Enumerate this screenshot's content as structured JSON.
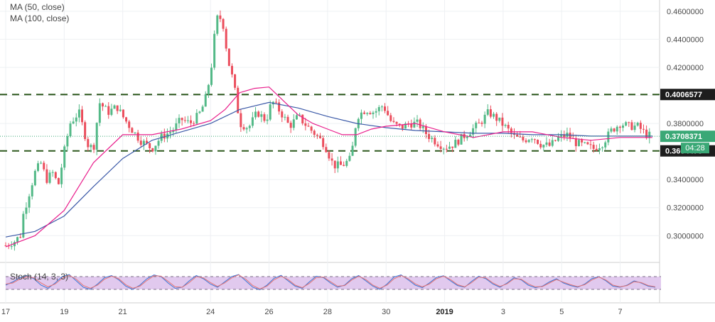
{
  "chart_data": [
    {
      "type": "candlestick",
      "indicators": [
        {
          "name": "MA (50, close)",
          "color": "#e91e8c"
        },
        {
          "name": "MA (100, close)",
          "color": "#3c5aa8"
        }
      ],
      "ylim": [
        0.288,
        0.466
      ],
      "y_ticks": [
        "0.4600000",
        "0.4400000",
        "0.4200000",
        "0.4000000",
        "0.3800000",
        "0.3400000",
        "0.3200000",
        "0.3000000"
      ],
      "x_ticks": [
        "17",
        "19",
        "21",
        "24",
        "26",
        "28",
        "30",
        "2019",
        "3",
        "5",
        "7"
      ],
      "x_tick_pos": [
        0,
        2,
        4,
        7,
        9,
        11,
        13,
        15,
        17,
        19,
        21
      ],
      "x_range": [
        0,
        22.2
      ],
      "levels": [
        {
          "value": 0.4006577,
          "label": "0.4006577",
          "style": "dashed",
          "color": "#2f5a1f"
        },
        {
          "value": 0.3604473,
          "label": "0.3604473",
          "style": "dashed",
          "color": "#2f5a1f"
        }
      ],
      "last_price": {
        "value": 0.3708371,
        "label": "0.3708371",
        "countdown": "04:28",
        "color": "#3aa876"
      },
      "price_path": [
        [
          0.0,
          0.293
        ],
        [
          0.3,
          0.296
        ],
        [
          0.5,
          0.3
        ],
        [
          0.6,
          0.315
        ],
        [
          0.8,
          0.33
        ],
        [
          1.0,
          0.345
        ],
        [
          1.2,
          0.352
        ],
        [
          1.4,
          0.34
        ],
        [
          1.6,
          0.345
        ],
        [
          1.8,
          0.336
        ],
        [
          2.0,
          0.36
        ],
        [
          2.2,
          0.38
        ],
        [
          2.5,
          0.388
        ],
        [
          2.8,
          0.365
        ],
        [
          3.0,
          0.362
        ],
        [
          3.2,
          0.395
        ],
        [
          3.5,
          0.388
        ],
        [
          3.8,
          0.392
        ],
        [
          4.0,
          0.385
        ],
        [
          4.3,
          0.376
        ],
        [
          4.6,
          0.368
        ],
        [
          5.0,
          0.362
        ],
        [
          5.3,
          0.37
        ],
        [
          5.7,
          0.375
        ],
        [
          6.0,
          0.383
        ],
        [
          6.3,
          0.38
        ],
        [
          6.6,
          0.386
        ],
        [
          6.8,
          0.395
        ],
        [
          7.0,
          0.415
        ],
        [
          7.2,
          0.455
        ],
        [
          7.4,
          0.455
        ],
        [
          7.6,
          0.425
        ],
        [
          7.8,
          0.408
        ],
        [
          8.0,
          0.38
        ],
        [
          8.3,
          0.377
        ],
        [
          8.6,
          0.388
        ],
        [
          8.9,
          0.382
        ],
        [
          9.1,
          0.396
        ],
        [
          9.4,
          0.388
        ],
        [
          9.7,
          0.378
        ],
        [
          10.0,
          0.385
        ],
        [
          10.3,
          0.378
        ],
        [
          10.6,
          0.372
        ],
        [
          10.9,
          0.365
        ],
        [
          11.2,
          0.35
        ],
        [
          11.5,
          0.35
        ],
        [
          11.8,
          0.355
        ],
        [
          12.0,
          0.385
        ],
        [
          12.3,
          0.39
        ],
        [
          12.6,
          0.388
        ],
        [
          12.9,
          0.393
        ],
        [
          13.2,
          0.38
        ],
        [
          13.5,
          0.377
        ],
        [
          13.8,
          0.38
        ],
        [
          14.1,
          0.38
        ],
        [
          14.4,
          0.372
        ],
        [
          14.7,
          0.367
        ],
        [
          15.0,
          0.363
        ],
        [
          15.3,
          0.365
        ],
        [
          15.6,
          0.37
        ],
        [
          15.9,
          0.375
        ],
        [
          16.2,
          0.38
        ],
        [
          16.5,
          0.388
        ],
        [
          16.8,
          0.383
        ],
        [
          17.1,
          0.377
        ],
        [
          17.4,
          0.37
        ],
        [
          17.7,
          0.368
        ],
        [
          18.0,
          0.371
        ],
        [
          18.3,
          0.365
        ],
        [
          18.6,
          0.364
        ],
        [
          18.9,
          0.37
        ],
        [
          19.2,
          0.372
        ],
        [
          19.5,
          0.366
        ],
        [
          19.8,
          0.364
        ],
        [
          20.1,
          0.362
        ],
        [
          20.4,
          0.366
        ],
        [
          20.7,
          0.375
        ],
        [
          21.0,
          0.38
        ],
        [
          21.3,
          0.378
        ],
        [
          21.6,
          0.378
        ],
        [
          21.9,
          0.372
        ],
        [
          22.1,
          0.371
        ]
      ],
      "ma50_path": [
        [
          0.0,
          0.292
        ],
        [
          1.0,
          0.3
        ],
        [
          2.0,
          0.318
        ],
        [
          3.0,
          0.352
        ],
        [
          4.0,
          0.372
        ],
        [
          5.0,
          0.372
        ],
        [
          6.0,
          0.376
        ],
        [
          7.0,
          0.382
        ],
        [
          7.5,
          0.39
        ],
        [
          8.0,
          0.402
        ],
        [
          8.5,
          0.405
        ],
        [
          9.0,
          0.406
        ],
        [
          9.5,
          0.396
        ],
        [
          10.0,
          0.386
        ],
        [
          10.5,
          0.38
        ],
        [
          11.0,
          0.376
        ],
        [
          11.5,
          0.372
        ],
        [
          12.0,
          0.372
        ],
        [
          12.5,
          0.376
        ],
        [
          13.0,
          0.378
        ],
        [
          14.0,
          0.38
        ],
        [
          15.0,
          0.374
        ],
        [
          16.0,
          0.37
        ],
        [
          17.0,
          0.374
        ],
        [
          18.0,
          0.374
        ],
        [
          19.0,
          0.37
        ],
        [
          20.0,
          0.368
        ],
        [
          21.0,
          0.37
        ],
        [
          22.1,
          0.37
        ]
      ],
      "ma100_path": [
        [
          0.0,
          0.299
        ],
        [
          1.0,
          0.303
        ],
        [
          2.0,
          0.314
        ],
        [
          3.0,
          0.335
        ],
        [
          4.0,
          0.355
        ],
        [
          5.0,
          0.368
        ],
        [
          6.0,
          0.374
        ],
        [
          7.0,
          0.38
        ],
        [
          8.0,
          0.39
        ],
        [
          9.0,
          0.395
        ],
        [
          10.0,
          0.391
        ],
        [
          11.0,
          0.385
        ],
        [
          12.0,
          0.38
        ],
        [
          13.0,
          0.377
        ],
        [
          14.0,
          0.375
        ],
        [
          15.0,
          0.374
        ],
        [
          16.0,
          0.373
        ],
        [
          17.0,
          0.373
        ],
        [
          18.0,
          0.372
        ],
        [
          19.0,
          0.372
        ],
        [
          20.0,
          0.371
        ],
        [
          21.0,
          0.371
        ],
        [
          22.1,
          0.371
        ]
      ]
    },
    {
      "type": "line",
      "title": "Stoch (14, 3, 3)",
      "ylim": [
        0,
        100
      ],
      "bands": [
        20,
        80
      ],
      "series": [
        {
          "color": "#3c78d8",
          "values": [
            40,
            55,
            75,
            85,
            70,
            40,
            25,
            50,
            80,
            90,
            60,
            30,
            20,
            45,
            75,
            85,
            65,
            35,
            20,
            40,
            70,
            88,
            80,
            50,
            25,
            30,
            60,
            85,
            70,
            45,
            30,
            55,
            80,
            90,
            60,
            30,
            18,
            40,
            72,
            86,
            60,
            35,
            25,
            55,
            82,
            75,
            50,
            30,
            40,
            70,
            85,
            60,
            35,
            20,
            45,
            78,
            88,
            65,
            40,
            28,
            50,
            76,
            84,
            60,
            38,
            30,
            58,
            82,
            70,
            45,
            30,
            50,
            75,
            65,
            40,
            28,
            35,
            55,
            70,
            50,
            38,
            30,
            45,
            70,
            80,
            60,
            35,
            30,
            40,
            60,
            50,
            35,
            30
          ]
        },
        {
          "color": "#e57373",
          "values": [
            45,
            50,
            68,
            80,
            74,
            50,
            32,
            45,
            72,
            86,
            68,
            38,
            25,
            40,
            68,
            82,
            70,
            42,
            25,
            35,
            62,
            84,
            82,
            58,
            32,
            30,
            52,
            80,
            74,
            52,
            34,
            50,
            74,
            88,
            68,
            38,
            22,
            35,
            65,
            82,
            66,
            40,
            28,
            48,
            76,
            78,
            56,
            35,
            38,
            64,
            82,
            66,
            40,
            25,
            40,
            70,
            85,
            70,
            46,
            32,
            45,
            70,
            82,
            66,
            42,
            32,
            52,
            78,
            74,
            50,
            34,
            46,
            70,
            68,
            46,
            32,
            33,
            50,
            66,
            54,
            42,
            33,
            42,
            64,
            78,
            64,
            40,
            32,
            38,
            56,
            52,
            38,
            32
          ]
        }
      ]
    }
  ]
}
